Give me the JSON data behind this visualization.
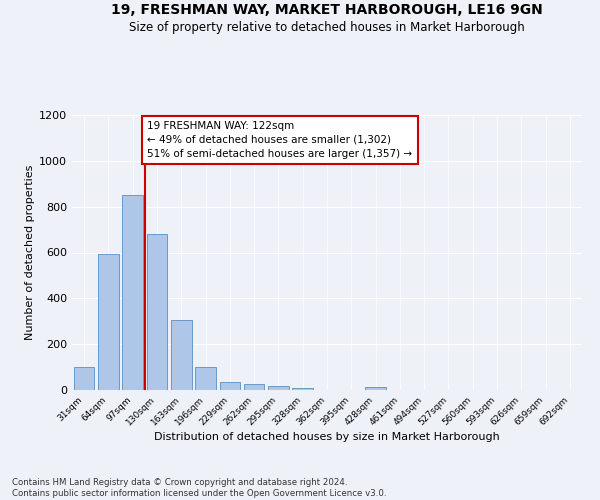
{
  "title": "19, FRESHMAN WAY, MARKET HARBOROUGH, LE16 9GN",
  "subtitle": "Size of property relative to detached houses in Market Harborough",
  "xlabel": "Distribution of detached houses by size in Market Harborough",
  "ylabel": "Number of detached properties",
  "categories": [
    "31sqm",
    "64sqm",
    "97sqm",
    "130sqm",
    "163sqm",
    "196sqm",
    "229sqm",
    "262sqm",
    "295sqm",
    "328sqm",
    "362sqm",
    "395sqm",
    "428sqm",
    "461sqm",
    "494sqm",
    "527sqm",
    "560sqm",
    "593sqm",
    "626sqm",
    "659sqm",
    "692sqm"
  ],
  "values": [
    100,
    595,
    850,
    680,
    305,
    100,
    35,
    25,
    18,
    10,
    0,
    0,
    12,
    0,
    0,
    0,
    0,
    0,
    0,
    0,
    0
  ],
  "bar_color": "#aec6e8",
  "bar_edge_color": "#5a8fc2",
  "vline_x": 2.5,
  "vline_color": "#cc0000",
  "annotation_line1": "19 FRESHMAN WAY: 122sqm",
  "annotation_line2": "← 49% of detached houses are smaller (1,302)",
  "annotation_line3": "51% of semi-detached houses are larger (1,357) →",
  "annotation_box_color": "#ffffff",
  "annotation_box_edge_color": "#cc0000",
  "ylim": [
    0,
    1200
  ],
  "yticks": [
    0,
    200,
    400,
    600,
    800,
    1000,
    1200
  ],
  "footnote": "Contains HM Land Registry data © Crown copyright and database right 2024.\nContains public sector information licensed under the Open Government Licence v3.0.",
  "bg_color": "#eef2f8",
  "plot_bg_color": "#eef2f8",
  "grid_color": "#ffffff"
}
